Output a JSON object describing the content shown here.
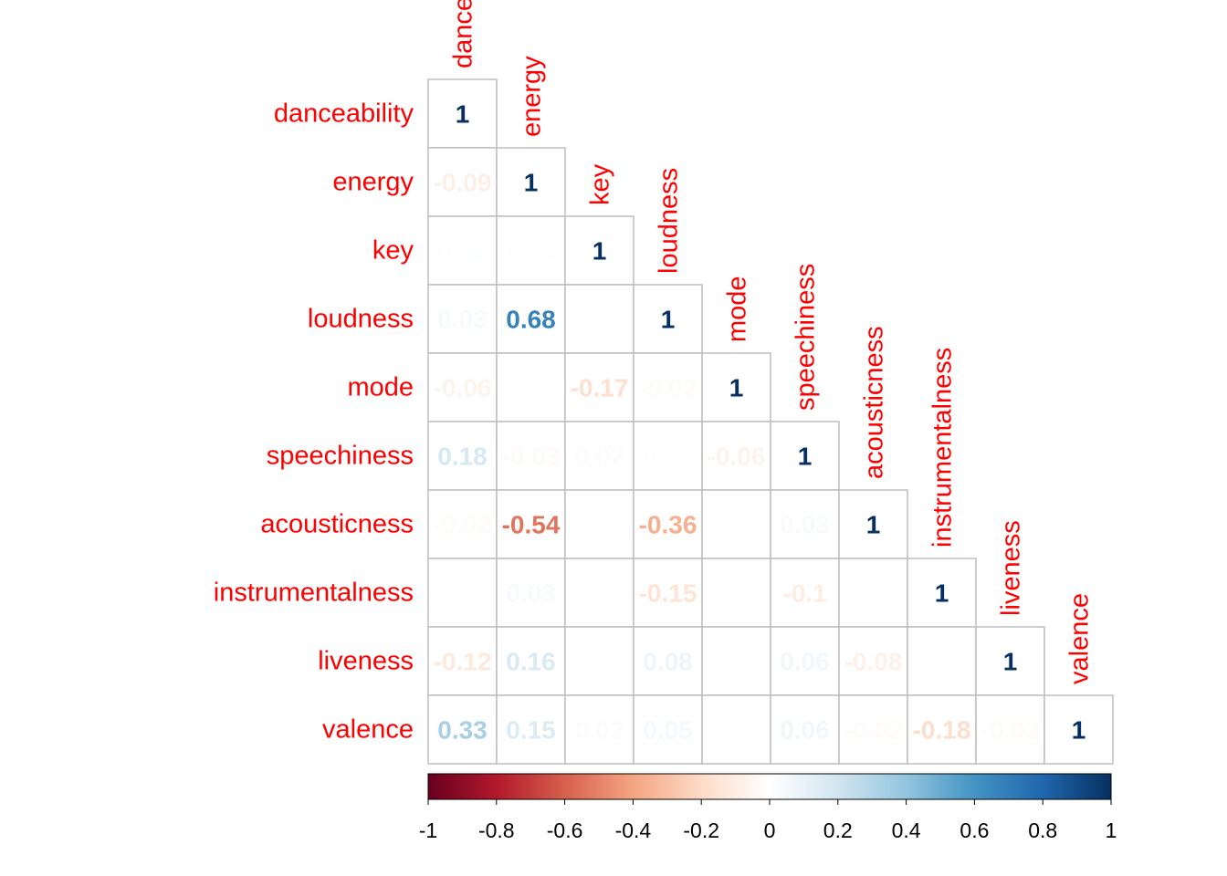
{
  "chart_data": {
    "type": "heatmap",
    "title": "",
    "variables": [
      "danceability",
      "energy",
      "key",
      "loudness",
      "mode",
      "speechiness",
      "acousticness",
      "instrumentalness",
      "liveness",
      "valence"
    ],
    "column_labels": [
      "danceability",
      "energy",
      "key",
      "loudness",
      "mode",
      "speechiness",
      "acousticness",
      "instrumentalness",
      "liveness",
      "valence"
    ],
    "matrix_lower": [
      [
        1
      ],
      [
        -0.09,
        1
      ],
      [
        0.01,
        0.01,
        1
      ],
      [
        0.03,
        0.68,
        0.0,
        1
      ],
      [
        -0.06,
        0.0,
        -0.17,
        -0.02,
        1
      ],
      [
        0.18,
        -0.03,
        0.02,
        0.01,
        -0.06,
        1
      ],
      [
        -0.02,
        -0.54,
        0.0,
        -0.36,
        0.0,
        0.03,
        1
      ],
      [
        0.0,
        0.03,
        0.0,
        -0.15,
        0.0,
        -0.1,
        0.0,
        1
      ],
      [
        -0.12,
        0.16,
        0.0,
        0.08,
        0.0,
        0.06,
        -0.08,
        0.0,
        1
      ],
      [
        0.33,
        0.15,
        0.02,
        0.05,
        0.0,
        0.06,
        -0.02,
        -0.18,
        -0.02,
        1
      ]
    ],
    "displayed_labels": [
      [
        "1"
      ],
      [
        "-0.09",
        "1"
      ],
      [
        "0.01",
        "0.01",
        "1"
      ],
      [
        "0.03",
        "0.68",
        "",
        "1"
      ],
      [
        "-0.06",
        "",
        "-0.17",
        "-0.02",
        "1"
      ],
      [
        "0.18",
        "-0.03",
        "0.02",
        "0.01",
        "-0.06",
        "1"
      ],
      [
        "-0.02",
        "-0.54",
        "",
        "-0.36",
        "",
        "0.03",
        "1"
      ],
      [
        "",
        "0.03",
        "",
        "-0.15",
        "",
        "-0.1",
        "",
        "1"
      ],
      [
        "-0.12",
        "0.16",
        "",
        "0.08",
        "",
        "0.06",
        "-0.08",
        "",
        "1"
      ],
      [
        "0.33",
        "0.15",
        "0.02",
        "0.05",
        "",
        "0.06",
        "-0.02",
        "-0.18",
        "-0.02",
        "1"
      ]
    ],
    "colorbar": {
      "range": [
        -1,
        1
      ],
      "ticks": [
        "-1",
        "-0.8",
        "-0.6",
        "-0.4",
        "-0.2",
        "0",
        "0.2",
        "0.4",
        "0.6",
        "0.8",
        "1"
      ],
      "tick_values": [
        -1,
        -0.8,
        -0.6,
        -0.4,
        -0.2,
        0,
        0.2,
        0.4,
        0.6,
        0.8,
        1
      ],
      "placement": "bottom"
    },
    "label_color": "#FF0000",
    "grid_color": "#BEBEBE",
    "color_scale": [
      "#67001F",
      "#B2182B",
      "#D6604D",
      "#F4A582",
      "#FDDBC7",
      "#FFFFFF",
      "#D1E5F0",
      "#92C5DE",
      "#4393C3",
      "#2166AC",
      "#053061"
    ]
  }
}
